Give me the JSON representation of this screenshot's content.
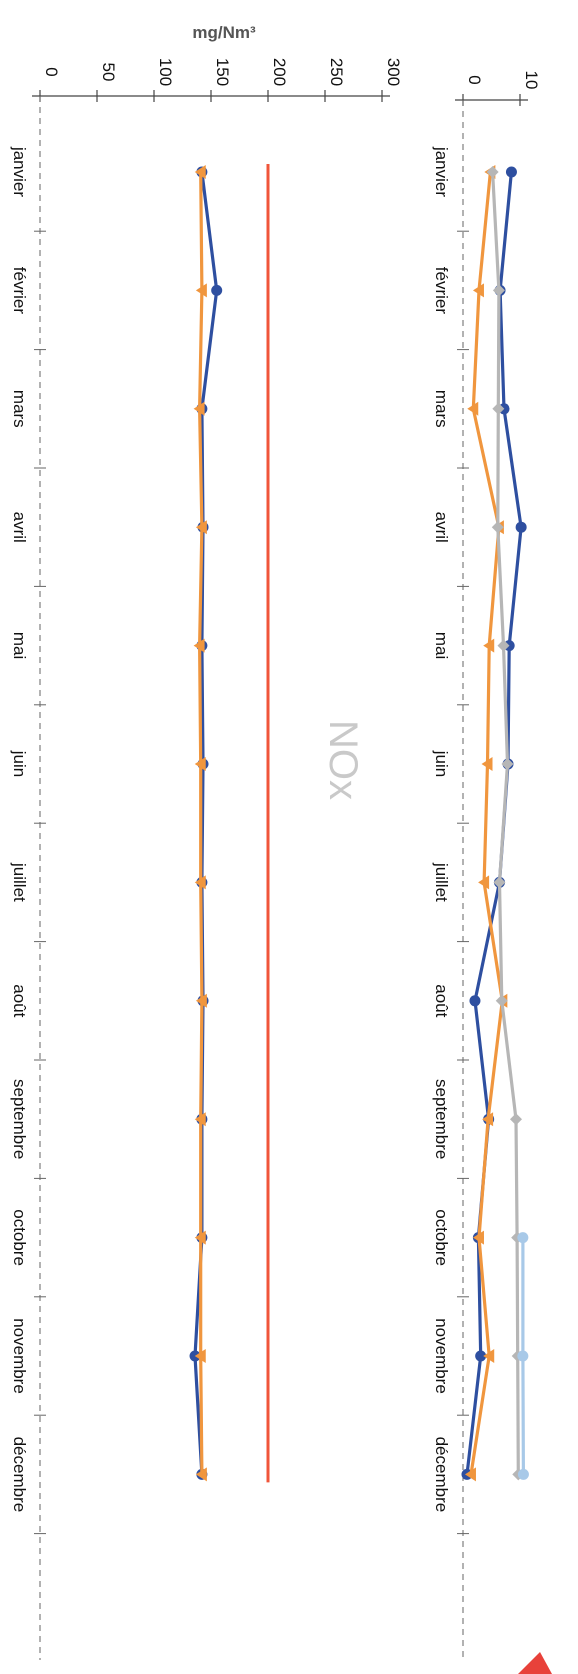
{
  "chart_data": [
    {
      "type": "line",
      "title": "",
      "xlabel": "",
      "ylabel": "",
      "categories": [
        "janvier",
        "février",
        "mars",
        "avril",
        "mai",
        "juin",
        "juillet",
        "août",
        "septembre",
        "octobre",
        "novembre",
        "décembre"
      ],
      "ylim": [
        0,
        10
      ],
      "yticks": [
        "0",
        "10"
      ],
      "grid": false,
      "series": [
        {
          "color": "#2e4fa0",
          "marker": "circle",
          "values": [
            8.5,
            6.5,
            7.2,
            10.2,
            8.1,
            7.9,
            6.4,
            2.1,
            4.5,
            2.7,
            3.1,
            0.7
          ]
        },
        {
          "color": "#f0963e",
          "marker": "triangle",
          "values": [
            4.8,
            2.8,
            1.8,
            6.3,
            4.6,
            4.3,
            3.7,
            6.9,
            4.4,
            2.8,
            4.6,
            1.4
          ]
        },
        {
          "color": "#b6b6b6",
          "marker": "diamond",
          "values": [
            5.2,
            6.3,
            6.2,
            6.1,
            7.1,
            7.8,
            6.4,
            6.8,
            9.3,
            9.5,
            9.6,
            9.7
          ]
        },
        {
          "color": "#a8c9e8",
          "marker": "circle",
          "values": [
            null,
            null,
            null,
            null,
            null,
            null,
            null,
            null,
            null,
            10.5,
            10.5,
            10.6
          ]
        }
      ]
    },
    {
      "type": "line",
      "title": "NOx",
      "xlabel": "",
      "ylabel": "mg/Nm³",
      "categories": [
        "janvier",
        "février",
        "mars",
        "avril",
        "mai",
        "juin",
        "juillet",
        "août",
        "septembre",
        "octobre",
        "novembre",
        "décembre"
      ],
      "ylim": [
        0,
        300
      ],
      "yticks": [
        "0",
        "50",
        "100",
        "150",
        "200",
        "250",
        "300"
      ],
      "grid": false,
      "limit_line": {
        "value": 200,
        "color": "#f0553a"
      },
      "series": [
        {
          "color": "#2e4fa0",
          "marker": "circle",
          "values": [
            142,
            155,
            142,
            143,
            142,
            143,
            142,
            143,
            142,
            142,
            136,
            142
          ]
        },
        {
          "color": "#f0963e",
          "marker": "triangle",
          "values": [
            141,
            142,
            140,
            142,
            140,
            141,
            141,
            142,
            141,
            141,
            141,
            142
          ]
        }
      ]
    }
  ]
}
